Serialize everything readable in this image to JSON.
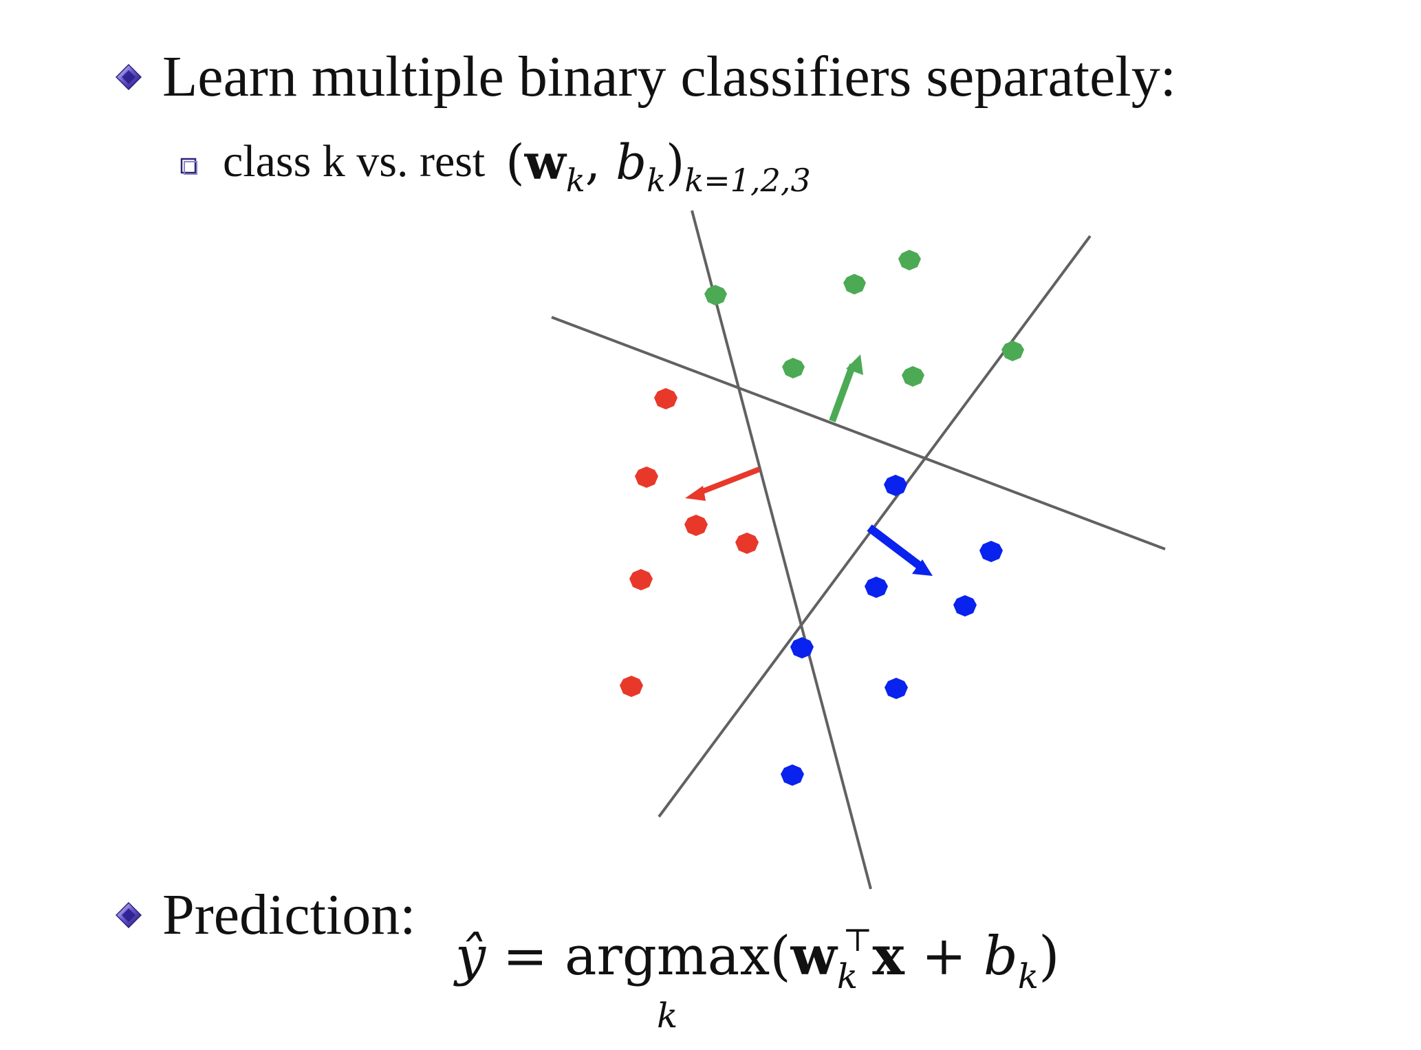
{
  "bullets": [
    {
      "text": "Learn multiple binary classifiers separately:",
      "icon": "diamond-bullet-icon"
    },
    {
      "text": "Prediction:",
      "icon": "diamond-bullet-icon"
    }
  ],
  "sub_bullet": {
    "text": "class k vs. rest",
    "icon": "square-bullet-icon",
    "formula": {
      "open": "(",
      "w": "w",
      "k1": "k",
      "comma": ",",
      "b": "b",
      "k2": "k",
      "close": ")",
      "subscript": "k=1,2,3"
    }
  },
  "prediction_formula": {
    "yhat": "ŷ",
    "equals": "=",
    "argmax": "argmax",
    "argmax_sub": "k",
    "open": "(",
    "w": "w",
    "w_sub": "k",
    "w_sup": "⊤",
    "x": "x",
    "plus": "+",
    "b": "b",
    "b_sub": "k",
    "close": ")"
  },
  "colors": {
    "green": "#4caa55",
    "red": "#e8382a",
    "blue": "#0a22ee",
    "line": "#616161",
    "bullet_purple": "#3a2a9a"
  }
}
